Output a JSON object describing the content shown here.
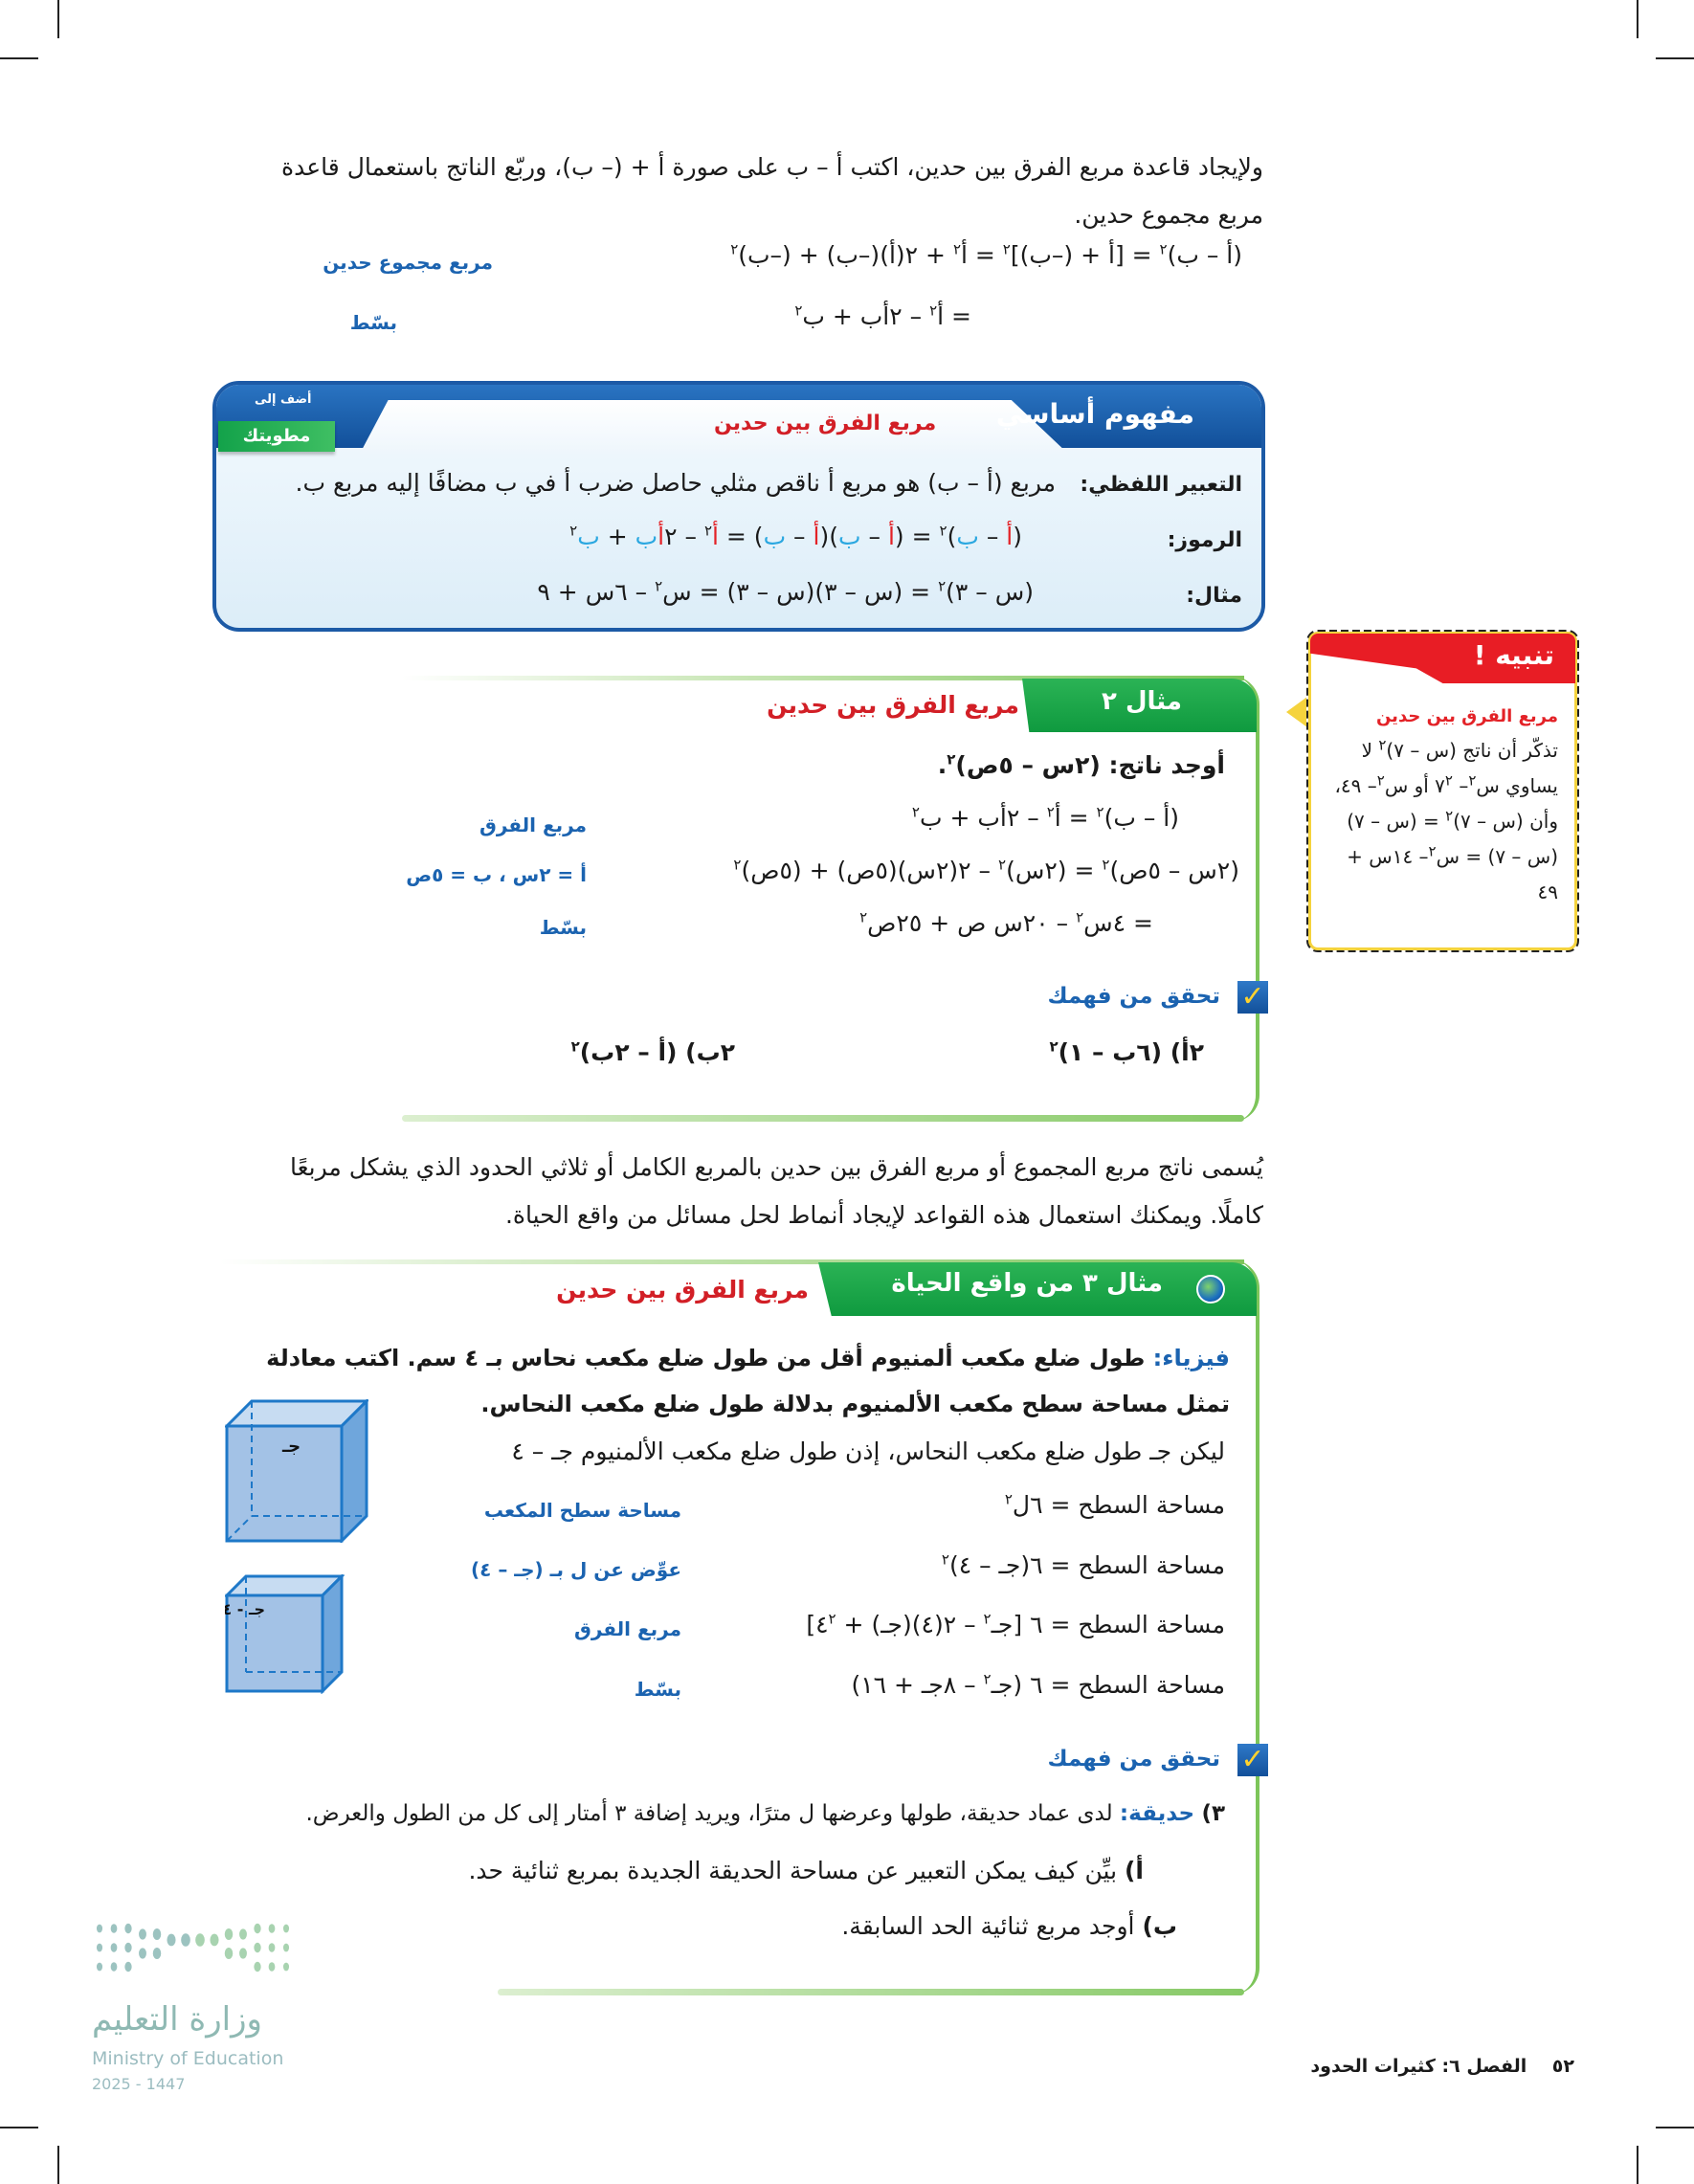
{
  "intro": {
    "paragraph": "ولإيجاد قاعدة مربع الفرق بين حدين، اكتب أ – ب على صورة أ + (– ب)، وربّع الناتج باستعمال قاعدة مربع مجموع حدين.",
    "eq1": [
      {
        "text": "(أ – ب)"
      },
      {
        "text": "٢",
        "sup": true
      },
      {
        "text": " = [أ + (–ب)]"
      },
      {
        "text": "٢",
        "sup": true
      },
      {
        "text": " = أ"
      },
      {
        "text": "٢",
        "sup": true
      },
      {
        "text": " + ٢(أ)(–ب) + (–ب)"
      },
      {
        "text": "٢",
        "sup": true
      }
    ],
    "eq1_note": "مربع مجموع حدين",
    "eq2": [
      {
        "text": "= أ"
      },
      {
        "text": "٢",
        "sup": true
      },
      {
        "text": " – ٢أب + ب"
      },
      {
        "text": "٢",
        "sup": true
      }
    ],
    "eq2_note": "بسّط"
  },
  "concept": {
    "title": "مفهوم أساسي",
    "subtitle": "مربع الفرق بين حدين",
    "foldable_top": "أضف إلى",
    "foldable": "مطويتك",
    "verbal_label": "التعبير اللفظي:",
    "verbal": "مربع (أ – ب) هو مربع أ ناقص مثلي حاصل ضرب أ في ب مضافًا إليه مربع ب.",
    "symbols_label": "الرموز:",
    "symbols": [
      {
        "text": "("
      },
      {
        "text": "أ",
        "color": "red"
      },
      {
        "text": " – "
      },
      {
        "text": "ب",
        "color": "blue"
      },
      {
        "text": ")"
      },
      {
        "text": "٢",
        "sup": true
      },
      {
        "text": " = ("
      },
      {
        "text": "أ",
        "color": "red"
      },
      {
        "text": " – "
      },
      {
        "text": "ب",
        "color": "blue"
      },
      {
        "text": ")("
      },
      {
        "text": "أ",
        "color": "red"
      },
      {
        "text": " – "
      },
      {
        "text": "ب",
        "color": "blue"
      },
      {
        "text": ") = "
      },
      {
        "text": "أ",
        "color": "red"
      },
      {
        "text": "٢",
        "sup": true
      },
      {
        "text": " – ٢"
      },
      {
        "text": "أ",
        "color": "red"
      },
      {
        "text": "ب",
        "color": "blue"
      },
      {
        "text": " + "
      },
      {
        "text": "ب",
        "color": "blue"
      },
      {
        "text": "٢",
        "sup": true
      }
    ],
    "example_label": "مثال:",
    "example": [
      {
        "text": "(س – ٣)"
      },
      {
        "text": "٢",
        "sup": true
      },
      {
        "text": " = (س – ٣)(س – ٣) = س"
      },
      {
        "text": "٢",
        "sup": true
      },
      {
        "text": " – ٦س + ٩"
      }
    ]
  },
  "warning": {
    "title": "تنبيه !",
    "subtitle": "مربع الفرق بين حدين",
    "body": [
      {
        "text": "تذكّر أن ناتج (س – ٧)"
      },
      {
        "text": "٢",
        "sup": true
      },
      {
        "text": " لا يساوي س"
      },
      {
        "text": "٢",
        "sup": true
      },
      {
        "text": "– ٧"
      },
      {
        "text": "٢",
        "sup": true
      },
      {
        "text": " أو س"
      },
      {
        "text": "٢",
        "sup": true
      },
      {
        "text": "– ٤٩، وأن (س – ٧)"
      },
      {
        "text": "٢",
        "sup": true
      },
      {
        "text": " = (س – ٧) (س – ٧) = س"
      },
      {
        "text": "٢",
        "sup": true
      },
      {
        "text": "– ١٤س + ٤٩"
      }
    ]
  },
  "example2": {
    "tab": "مثال ٢",
    "subtitle": "مربع الفرق بين حدين",
    "prompt": [
      {
        "text": "أوجد ناتج: (٢س – ٥ص)"
      },
      {
        "text": "٢",
        "sup": true
      },
      {
        "text": "."
      }
    ],
    "eq1": [
      {
        "text": "(أ – ب)"
      },
      {
        "text": "٢",
        "sup": true
      },
      {
        "text": " = أ"
      },
      {
        "text": "٢",
        "sup": true
      },
      {
        "text": " – ٢أب + ب"
      },
      {
        "text": "٢",
        "sup": true
      }
    ],
    "eq1_note": "مربع الفرق",
    "eq2": [
      {
        "text": "(٢س – ٥ص)"
      },
      {
        "text": "٢",
        "sup": true
      },
      {
        "text": " = (٢س)"
      },
      {
        "text": "٢",
        "sup": true
      },
      {
        "text": " – ٢(٢س)(٥ص) + (٥ص)"
      },
      {
        "text": "٢",
        "sup": true
      }
    ],
    "eq2_note": "أ = ٢س ، ب = ٥ص",
    "eq3": [
      {
        "text": "= ٤س"
      },
      {
        "text": "٢",
        "sup": true
      },
      {
        "text": " – ٢٠س ص + ٢٥ص"
      },
      {
        "text": "٢",
        "sup": true
      }
    ],
    "eq3_note": "بسّط",
    "check_title": "تحقق من فهمك",
    "item_a": [
      {
        "text": "٢أ) (٦ب – ١)"
      },
      {
        "text": "٢",
        "sup": true
      }
    ],
    "item_b": [
      {
        "text": "٢ب) (أ – ٢ب)"
      },
      {
        "text": "٢",
        "sup": true
      }
    ]
  },
  "paragraph2": "يُسمى ناتج مربع المجموع أو مربع الفرق بين حدين بالمربع الكامل أو ثلاثي الحدود الذي يشكل مربعًا كاملًا. ويمكنك استعمال هذه القواعد لإيجاد أنماط لحل مسائل من واقع الحياة.",
  "example3": {
    "tab": "مثال ٣ من واقع الحياة",
    "subtitle": "مربع الفرق بين حدين",
    "topic": "فيزياء:",
    "problem": "طول ضلع مكعب ألمنيوم أقل من طول ضلع مكعب نحاس بـ ٤ سم. اكتب معادلة تمثل مساحة سطح مكعب الألمنيوم بدلالة طول ضلع مكعب النحاس.",
    "let": "ليكن جـ طول ضلع مكعب النحاس، إذن طول ضلع مكعب الألمنيوم جـ – ٤",
    "eq1": [
      {
        "text": "مساحة السطح = ٦ل"
      },
      {
        "text": "٢",
        "sup": true
      }
    ],
    "eq1_note": "مساحة سطح المكعب",
    "eq2": [
      {
        "text": "مساحة السطح = ٦(جـ – ٤)"
      },
      {
        "text": "٢",
        "sup": true
      }
    ],
    "eq2_note": "عوِّض عن ل بـ (جـ – ٤)",
    "eq3": [
      {
        "text": "مساحة السطح = ٦ [جـ"
      },
      {
        "text": "٢",
        "sup": true
      },
      {
        "text": " – ٢(٤)(جـ) + ٤"
      },
      {
        "text": "٢",
        "sup": true
      },
      {
        "text": "]"
      }
    ],
    "eq3_note": "مربع الفرق",
    "eq4": [
      {
        "text": "مساحة السطح = ٦ (جـ"
      },
      {
        "text": "٢",
        "sup": true
      },
      {
        "text": " – ٨جـ + ١٦)"
      }
    ],
    "eq4_note": "بسّط",
    "cube1_label": "جـ",
    "cube2_label": "جـ - ٤",
    "check_title": "تحقق من فهمك",
    "q3_num": "٣)",
    "q3_topic": "حديقة:",
    "q3_text": "لدى عماد حديقة، طولها وعرضها ل مترًا، ويريد إضافة ٣ أمتار إلى كل من الطول والعرض.",
    "q3a_label": "أ)",
    "q3a": "بيِّن كيف يمكن التعبير عن مساحة الحديقة الجديدة بمربع ثنائية حد.",
    "q3b_label": "ب)",
    "q3b": "أوجد مربع ثنائية الحد السابقة."
  },
  "footer": {
    "page": "٥٢",
    "chapter": "الفصل ٦: كثيرات الحدود"
  },
  "logo": {
    "arabic": "وزارة التعليم",
    "english": "Ministry of Education",
    "year": "2025 - 1447"
  },
  "colors": {
    "blue": "#1c5aa6",
    "green": "#0f9a3f",
    "red": "#e32227",
    "note_blue": "#1b63b0"
  }
}
